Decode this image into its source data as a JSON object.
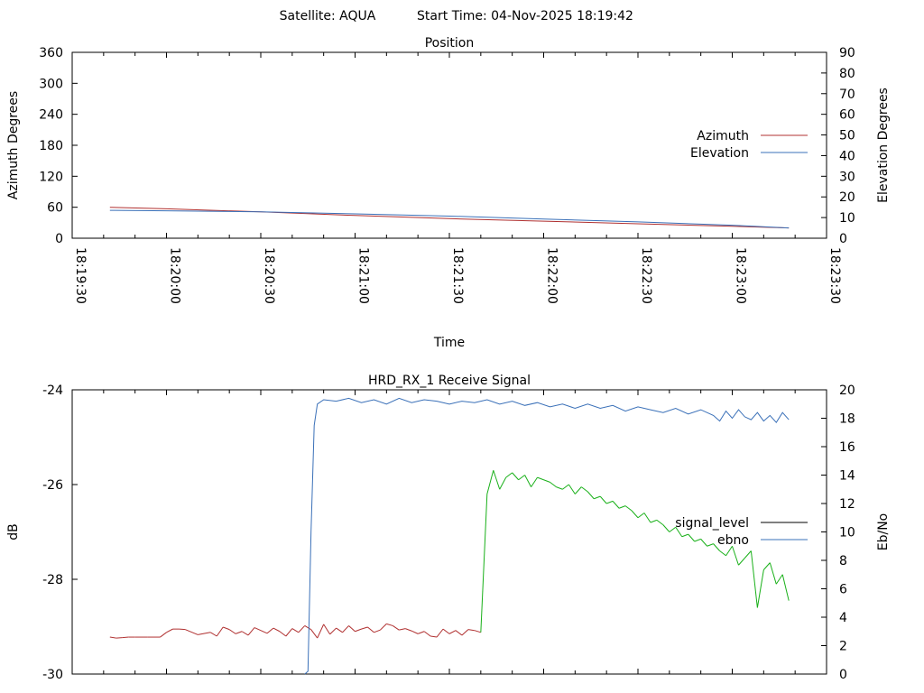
{
  "header": {
    "satellite_label": "Satellite: AQUA",
    "start_time_label": "Start Time: 04-Nov-2025 18:19:42"
  },
  "colors": {
    "azimuth": "#b03030",
    "elevation": "#3a70b8",
    "signal_level_low": "#b03030",
    "signal_level_high": "#19b019",
    "ebno": "#3a70b8",
    "legend_signal_level": "#000000",
    "axis": "#000000"
  },
  "chart_data": [
    {
      "type": "line",
      "title": "Position",
      "xlabel": "Time",
      "ylabel": "Azimuth Degrees",
      "y2label": "Elevation Degrees",
      "xlim": [
        0,
        240
      ],
      "x_ticks": [
        "18:19:30",
        "18:20:00",
        "18:20:30",
        "18:21:00",
        "18:21:30",
        "18:22:00",
        "18:22:30",
        "18:23:00",
        "18:23:30"
      ],
      "ylim": [
        0,
        360
      ],
      "y_ticks": [
        "0",
        "60",
        "120",
        "180",
        "240",
        "300",
        "360"
      ],
      "y2lim": [
        0,
        90
      ],
      "y2_ticks": [
        "0",
        "10",
        "20",
        "30",
        "40",
        "50",
        "60",
        "70",
        "80",
        "90"
      ],
      "legend_position": "right",
      "series": [
        {
          "name": "Azimuth",
          "axis": "y",
          "x": [
            12,
            30,
            60,
            90,
            120,
            150,
            180,
            210,
            228
          ],
          "values": [
            60,
            57,
            51,
            44,
            38,
            33,
            28,
            23,
            20
          ]
        },
        {
          "name": "Elevation",
          "axis": "y2",
          "x": [
            12,
            30,
            60,
            90,
            120,
            150,
            180,
            210,
            228
          ],
          "values": [
            13.5,
            13.3,
            12.8,
            11.8,
            10.7,
            9.3,
            7.9,
            6.3,
            5.0
          ]
        }
      ]
    },
    {
      "type": "line",
      "title": "HRD_RX_1 Receive Signal",
      "xlabel": "",
      "ylabel": "dB",
      "y2label": "Eb/No",
      "xlim": [
        0,
        240
      ],
      "ylim": [
        -30,
        -24
      ],
      "y_ticks": [
        "-30",
        "-28",
        "-26",
        "-24"
      ],
      "y2lim": [
        0,
        20
      ],
      "y2_ticks": [
        "0",
        "2",
        "4",
        "6",
        "8",
        "10",
        "12",
        "14",
        "16",
        "18",
        "20"
      ],
      "legend_position": "right",
      "series": [
        {
          "name": "signal_level",
          "axis": "y",
          "x": [
            12,
            14,
            16,
            18,
            20,
            24,
            28,
            30,
            32,
            34,
            36,
            40,
            44,
            46,
            48,
            50,
            52,
            54,
            56,
            58,
            60,
            62,
            64,
            66,
            68,
            70,
            72,
            74,
            76,
            78,
            80,
            82,
            84,
            86,
            88,
            90,
            92,
            94,
            96,
            98,
            100,
            102,
            104,
            106,
            108,
            110,
            112,
            114,
            116,
            118,
            120,
            122,
            124,
            126,
            128,
            130,
            132,
            134,
            136,
            138,
            140,
            142,
            144,
            146,
            148,
            150,
            152,
            154,
            156,
            158,
            160,
            162,
            164,
            166,
            168,
            170,
            172,
            174,
            176,
            178,
            180,
            182,
            184,
            186,
            188,
            190,
            192,
            194,
            196,
            198,
            200,
            202,
            204,
            206,
            208,
            210,
            212,
            214,
            216,
            218,
            220,
            222,
            224,
            226,
            228
          ],
          "values": [
            -29.22,
            -29.24,
            -29.23,
            -29.22,
            -29.22,
            -29.22,
            -29.22,
            -29.12,
            -29.05,
            -29.05,
            -29.06,
            -29.17,
            -29.12,
            -29.2,
            -29.01,
            -29.06,
            -29.15,
            -29.1,
            -29.18,
            -29.02,
            -29.08,
            -29.14,
            -29.03,
            -29.1,
            -29.2,
            -29.04,
            -29.12,
            -28.98,
            -29.06,
            -29.24,
            -28.95,
            -29.16,
            -29.03,
            -29.12,
            -28.98,
            -29.1,
            -29.05,
            -29.01,
            -29.12,
            -29.07,
            -28.94,
            -28.98,
            -29.07,
            -29.04,
            -29.09,
            -29.15,
            -29.1,
            -29.2,
            -29.22,
            -29.05,
            -29.15,
            -29.08,
            -29.18,
            -29.06,
            -29.08,
            -29.12,
            -26.2,
            -25.7,
            -26.1,
            -25.85,
            -25.75,
            -25.9,
            -25.8,
            -26.05,
            -25.85,
            -25.9,
            -25.95,
            -26.05,
            -26.1,
            -26.0,
            -26.2,
            -26.05,
            -26.15,
            -26.3,
            -26.25,
            -26.4,
            -26.35,
            -26.5,
            -26.45,
            -26.55,
            -26.7,
            -26.6,
            -26.8,
            -26.75,
            -26.85,
            -27.0,
            -26.9,
            -27.1,
            -27.05,
            -27.2,
            -27.15,
            -27.3,
            -27.25,
            -27.4,
            -27.5,
            -27.3,
            -27.7,
            -27.55,
            -27.4,
            -28.6,
            -27.8,
            -27.65,
            -28.1,
            -27.9,
            -28.45
          ]
        },
        {
          "name": "ebno",
          "axis": "y2",
          "x": [
            74,
            75,
            76,
            77,
            78,
            80,
            84,
            88,
            92,
            96,
            100,
            104,
            108,
            112,
            116,
            120,
            124,
            128,
            132,
            136,
            140,
            144,
            148,
            152,
            156,
            160,
            164,
            168,
            172,
            176,
            180,
            184,
            188,
            192,
            196,
            200,
            204,
            206,
            208,
            210,
            212,
            214,
            216,
            218,
            220,
            222,
            224,
            226,
            228
          ],
          "values": [
            0,
            0.2,
            10.0,
            17.5,
            19.0,
            19.3,
            19.2,
            19.4,
            19.1,
            19.3,
            19.0,
            19.4,
            19.1,
            19.3,
            19.2,
            19.0,
            19.2,
            19.1,
            19.3,
            19.0,
            19.2,
            18.9,
            19.1,
            18.8,
            19.0,
            18.7,
            19.0,
            18.7,
            18.9,
            18.5,
            18.8,
            18.6,
            18.4,
            18.7,
            18.3,
            18.6,
            18.2,
            17.8,
            18.5,
            18.0,
            18.6,
            18.1,
            17.9,
            18.4,
            17.8,
            18.2,
            17.7,
            18.4,
            17.9
          ]
        }
      ]
    }
  ]
}
